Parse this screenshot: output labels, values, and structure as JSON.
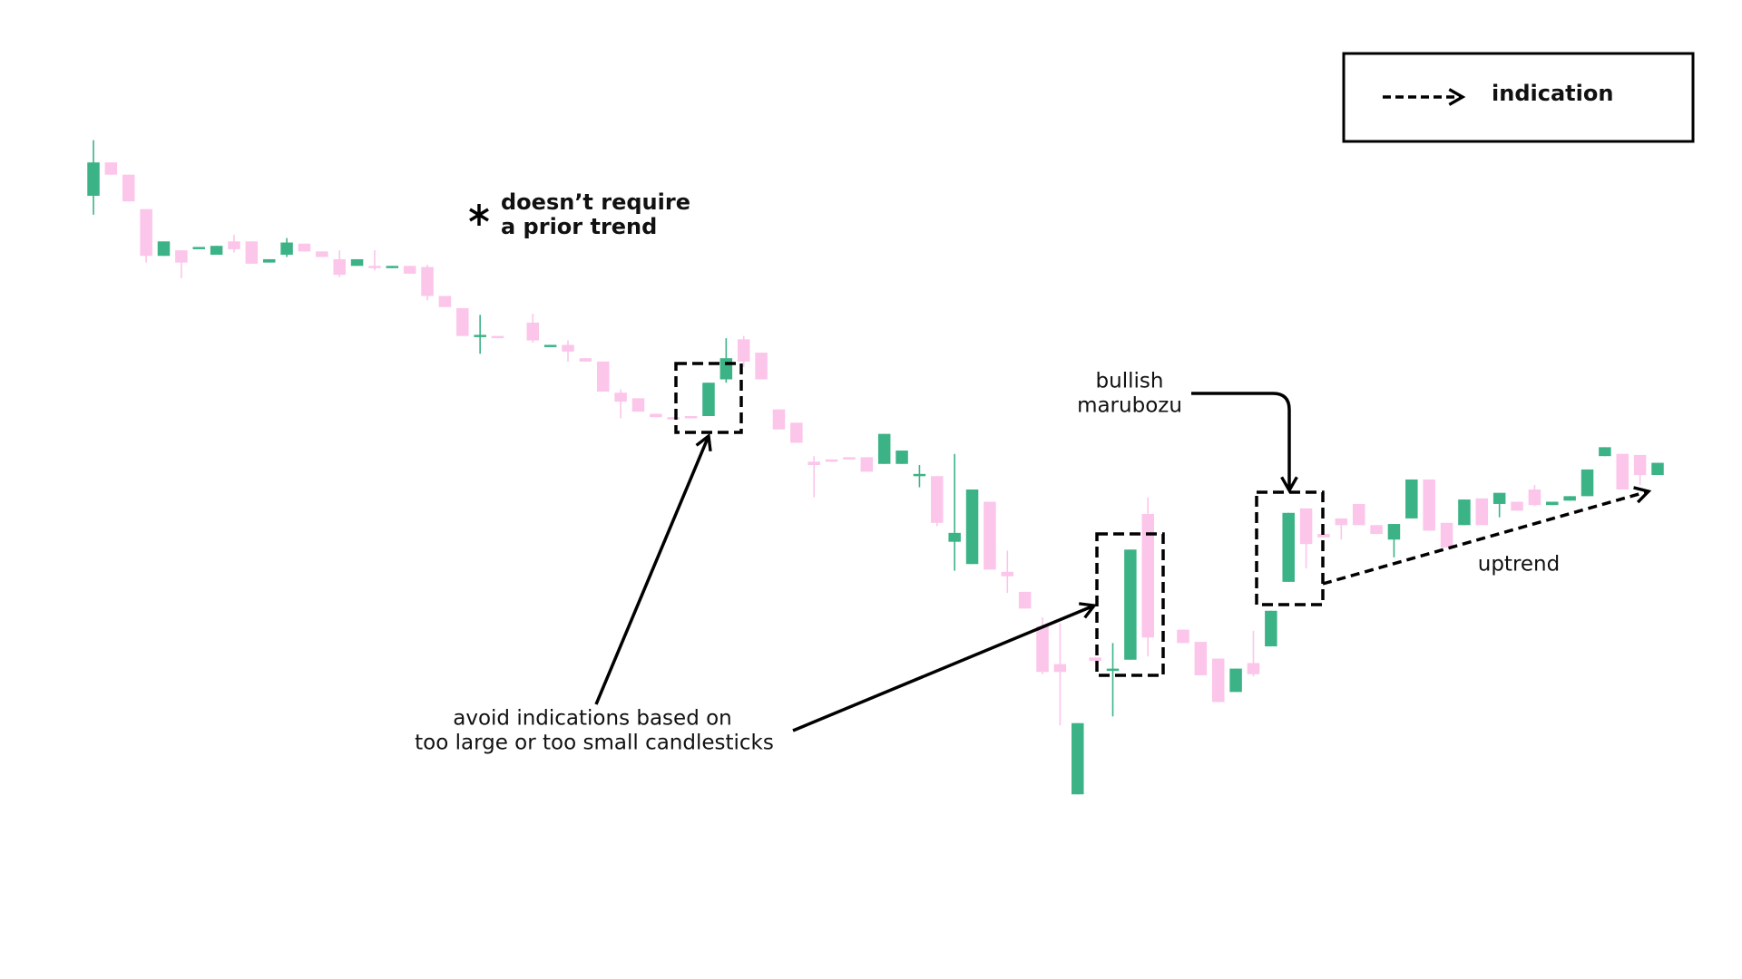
{
  "chart_data": {
    "type": "candlestick",
    "up_color": "#3cb386",
    "down_color": "#fcc5ea",
    "ylim": [
      0,
      880
    ],
    "legend": {
      "label": "indication"
    },
    "annotations": [
      {
        "lines": [
          "doesn’t require",
          "a prior trend"
        ]
      },
      {
        "lines": [
          "avoid indications based on",
          "too large or too small candlesticks"
        ]
      },
      {
        "lines": [
          "bullish",
          "marubozu"
        ]
      },
      {
        "lines": [
          "uptrend"
        ]
      }
    ],
    "open": [
      704,
      734,
      723,
      692,
      650,
      655,
      657,
      651,
      663,
      663,
      644,
      651,
      661,
      654,
      647,
      641,
      641,
      639,
      641,
      640,
      614,
      603,
      578,
      578,
      null,
      590,
      569,
      570,
      558,
      555,
      527,
      522,
      508,
      505,
      506,
      506,
      539,
      575,
      563,
      512,
      500,
      465,
      467,
      469,
      469,
      463,
      463,
      453,
      452,
      393,
      373,
      429,
      366,
      348,
      317,
      283,
      166,
      289,
      278,
      287,
      418,
      null,
      314,
      303,
      288,
      258,
      284,
      299,
      357,
      423,
      400,
      414,
      427,
      408,
      395,
      414,
      449,
      410,
      408,
      432,
      427,
      429,
      440,
      426,
      430,
      434,
      470,
      472,
      471,
      453
    ],
    "high": [
      754,
      734,
      723,
      692,
      663,
      655,
      658,
      659,
      669,
      663,
      647,
      666,
      661,
      654,
      655,
      647,
      655,
      641,
      641,
      642,
      614,
      603,
      597,
      578,
      null,
      598,
      570,
      574,
      558,
      555,
      530,
      522,
      508,
      505,
      506,
      536,
      576,
      578,
      563,
      512,
      500,
      470,
      467,
      469,
      469,
      490,
      475,
      462,
      452,
      472,
      440,
      429,
      385,
      348,
      325,
      320,
      230,
      289,
      302,
      386,
      433,
      null,
      314,
      303,
      288,
      279,
      313,
      331,
      419,
      423,
      400,
      414,
      427,
      408,
      409,
      449,
      449,
      410,
      431,
      432,
      437,
      429,
      444,
      429,
      434,
      458,
      478,
      472,
      471,
      464
    ],
    "low": [
      687,
      723,
      699,
      644,
      650,
      630,
      657,
      651,
      653,
      643,
      644,
      649,
      654,
      649,
      631,
      641,
      637,
      639,
      634,
      610,
      604,
      578,
      562,
      577,
      null,
      572,
      569,
      555,
      555,
      528,
      504,
      510,
      505,
      503,
      504,
      506,
      536,
      550,
      539,
      494,
      482,
      433,
      466,
      468,
      456,
      463,
      463,
      442,
      407,
      367,
      373,
      368,
      347,
      333,
      274,
      228,
      166,
      286,
      236,
      287,
      290,
      null,
      302,
      273,
      249,
      258,
      272,
      299,
      357,
      369,
      397,
      395,
      408,
      400,
      379,
      414,
      403,
      388,
      408,
      408,
      415,
      421,
      425,
      426,
      430,
      434,
      470,
      440,
      444,
      453
    ],
    "close": [
      734,
      723,
      699,
      650,
      663,
      644,
      658,
      659,
      656,
      643,
      647,
      662,
      654,
      649,
      633,
      647,
      640,
      641,
      634,
      614,
      604,
      578,
      579,
      577,
      null,
      574,
      570,
      564,
      555,
      528,
      519,
      510,
      505,
      503,
      504,
      536,
      558,
      555,
      539,
      494,
      482,
      462,
      466,
      468,
      456,
      490,
      475,
      454,
      410,
      401,
      440,
      368,
      362,
      333,
      276,
      276,
      230,
      286,
      279,
      386,
      307,
      null,
      302,
      273,
      249,
      279,
      274,
      331,
      419,
      391,
      397,
      408,
      408,
      400,
      409,
      449,
      403,
      388,
      431,
      408,
      437,
      421,
      426,
      429,
      434,
      458,
      478,
      440,
      453,
      464
    ]
  }
}
